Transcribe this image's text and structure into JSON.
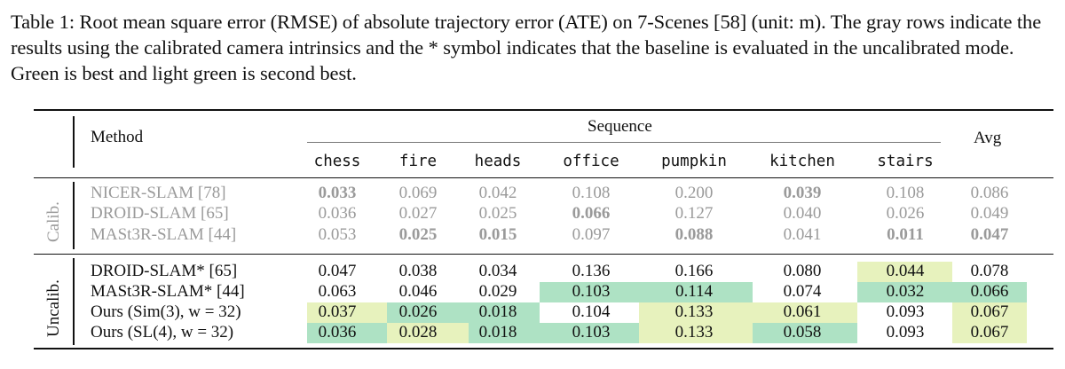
{
  "caption": "Table 1: Root mean square error (RMSE) of absolute trajectory error (ATE) on 7-Scenes [58] (unit: m). The gray rows indicate the results using the calibrated camera intrinsics and the * symbol indicates that the baseline is evaluated in the uncalibrated mode. Green is best and light green is second best.",
  "header": {
    "method": "Method",
    "sequence": "Sequence",
    "avg": "Avg",
    "columns": [
      "chess",
      "fire",
      "heads",
      "office",
      "pumpkin",
      "kitchen",
      "stairs"
    ]
  },
  "groups": {
    "calib": "Calib.",
    "uncalib": "Uncalib."
  },
  "colors": {
    "best": "#aee2c4",
    "second": "#e7f2bd",
    "gray_text": "#9a9a9a"
  },
  "chart_data": {
    "type": "table",
    "columns": [
      "Method",
      "chess",
      "fire",
      "heads",
      "office",
      "pumpkin",
      "kitchen",
      "stairs",
      "Avg"
    ],
    "rows": [
      {
        "group": "Calib.",
        "method": "NICER-SLAM [78]",
        "values": [
          "0.033",
          "0.069",
          "0.042",
          "0.108",
          "0.200",
          "0.039",
          "0.108",
          "0.086"
        ],
        "bold": [
          0,
          5
        ],
        "hl": [
          "",
          "",
          "",
          "",
          "",
          "",
          "",
          ""
        ]
      },
      {
        "group": "Calib.",
        "method": "DROID-SLAM [65]",
        "values": [
          "0.036",
          "0.027",
          "0.025",
          "0.066",
          "0.127",
          "0.040",
          "0.026",
          "0.049"
        ],
        "bold": [
          3
        ],
        "hl": [
          "",
          "",
          "",
          "",
          "",
          "",
          "",
          ""
        ]
      },
      {
        "group": "Calib.",
        "method": "MASt3R-SLAM [44]",
        "values": [
          "0.053",
          "0.025",
          "0.015",
          "0.097",
          "0.088",
          "0.041",
          "0.011",
          "0.047"
        ],
        "bold": [
          1,
          2,
          4,
          6,
          7
        ],
        "hl": [
          "",
          "",
          "",
          "",
          "",
          "",
          "",
          ""
        ]
      },
      {
        "group": "Uncalib.",
        "method": "DROID-SLAM* [65]",
        "values": [
          "0.047",
          "0.038",
          "0.034",
          "0.136",
          "0.166",
          "0.080",
          "0.044",
          "0.078"
        ],
        "bold": [],
        "hl": [
          "",
          "",
          "",
          "",
          "",
          "",
          "second",
          ""
        ]
      },
      {
        "group": "Uncalib.",
        "method": "MASt3R-SLAM* [44]",
        "values": [
          "0.063",
          "0.046",
          "0.029",
          "0.103",
          "0.114",
          "0.074",
          "0.032",
          "0.066"
        ],
        "bold": [],
        "hl": [
          "",
          "",
          "",
          "best",
          "best",
          "",
          "best",
          "best"
        ]
      },
      {
        "group": "Uncalib.",
        "method": "Ours (Sim(3), w = 32)",
        "values": [
          "0.037",
          "0.026",
          "0.018",
          "0.104",
          "0.133",
          "0.061",
          "0.093",
          "0.067"
        ],
        "bold": [],
        "hl": [
          "second",
          "best",
          "best",
          "",
          "second",
          "second",
          "",
          "second"
        ]
      },
      {
        "group": "Uncalib.",
        "method": "Ours (SL(4), w = 32)",
        "values": [
          "0.036",
          "0.028",
          "0.018",
          "0.103",
          "0.133",
          "0.058",
          "0.093",
          "0.067"
        ],
        "bold": [],
        "hl": [
          "best",
          "second",
          "best",
          "best",
          "second",
          "best",
          "",
          "second"
        ]
      }
    ]
  }
}
